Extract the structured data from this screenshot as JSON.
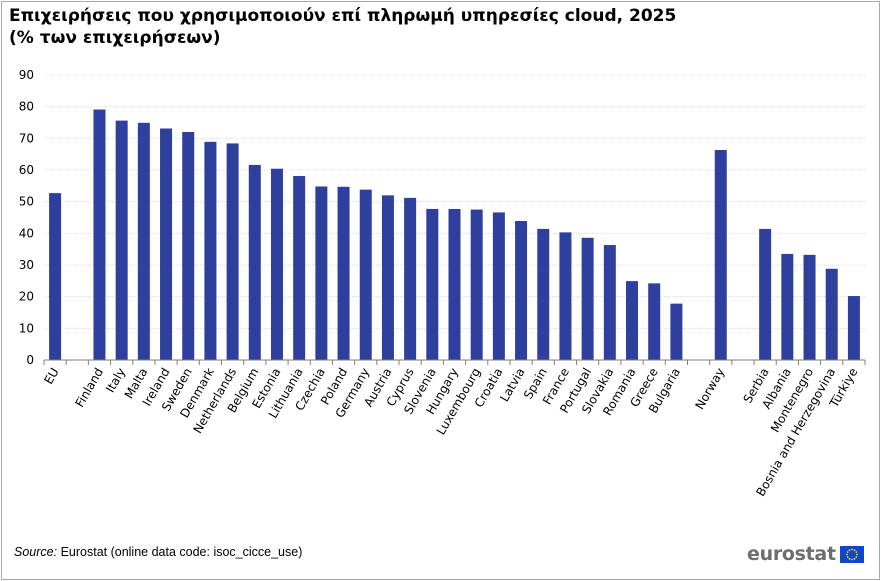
{
  "header": {
    "title_line1": "Επιχειρήσεις που χρησιμοποιούν επί πληρωμή υπηρεσίες cloud, 2025",
    "title_line2": "(% των επιχειρήσεων)"
  },
  "footer": {
    "source_label": "Source:",
    "source_text": " Eurostat (online data code: isoc_cicce_use)",
    "logo_text": "eurostat"
  },
  "colors": {
    "bar": "#2e3f9e",
    "grid": "#d9d9d9",
    "axis": "#7f7f7f",
    "logo_blue": "#0e47cb",
    "logo_star": "#ffd617"
  },
  "icons": {
    "flag": "eu-flag-icon"
  },
  "chart_data": {
    "type": "bar",
    "title": "Επιχειρήσεις που χρησιμοποιούν επί πληρωμή υπηρεσίες cloud, 2025",
    "subtitle": "(% των επιχειρήσεων)",
    "xlabel": "",
    "ylabel": "",
    "ylim": [
      0,
      90
    ],
    "yticks": [
      0,
      10,
      20,
      30,
      40,
      50,
      60,
      70,
      80,
      90
    ],
    "grid": true,
    "legend": "none",
    "categories": [
      "EU",
      "",
      "Finland",
      "Italy",
      "Malta",
      "Ireland",
      "Sweden",
      "Denmark",
      "Netherlands",
      "Belgium",
      "Estonia",
      "Lithuania",
      "Czechia",
      "Poland",
      "Germany",
      "Austria",
      "Cyprus",
      "Slovenia",
      "Hungary",
      "Luxembourg",
      "Croatia",
      "Latvia",
      "Spain",
      "France",
      "Portugal",
      "Slovakia",
      "Romania",
      "Greece",
      "Bulgaria",
      "",
      "Norway",
      "",
      "Serbia",
      "Albania",
      "Montenegro",
      "Bosnia and Herzegovina",
      "Türkiye"
    ],
    "values": [
      52.7,
      null,
      79.1,
      75.6,
      74.9,
      73.1,
      72.0,
      68.9,
      68.4,
      61.6,
      60.4,
      58.1,
      54.8,
      54.7,
      53.8,
      52.0,
      51.2,
      47.7,
      47.7,
      47.5,
      46.6,
      43.9,
      41.4,
      40.3,
      38.6,
      36.3,
      24.9,
      24.2,
      17.8,
      null,
      66.3,
      null,
      41.4,
      33.5,
      33.2,
      28.8,
      20.2
    ]
  }
}
